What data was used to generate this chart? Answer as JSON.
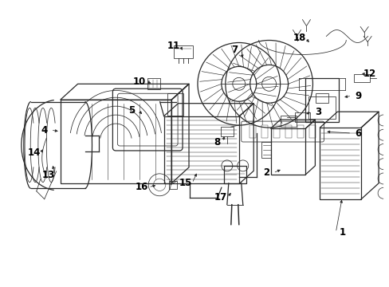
{
  "background_color": "#ffffff",
  "line_color": "#2a2a2a",
  "text_color": "#000000",
  "fig_width": 4.89,
  "fig_height": 3.6,
  "dpi": 100,
  "label_fontsize": 8.5,
  "lw_main": 0.9,
  "lw_thin": 0.55,
  "lw_thick": 1.1
}
